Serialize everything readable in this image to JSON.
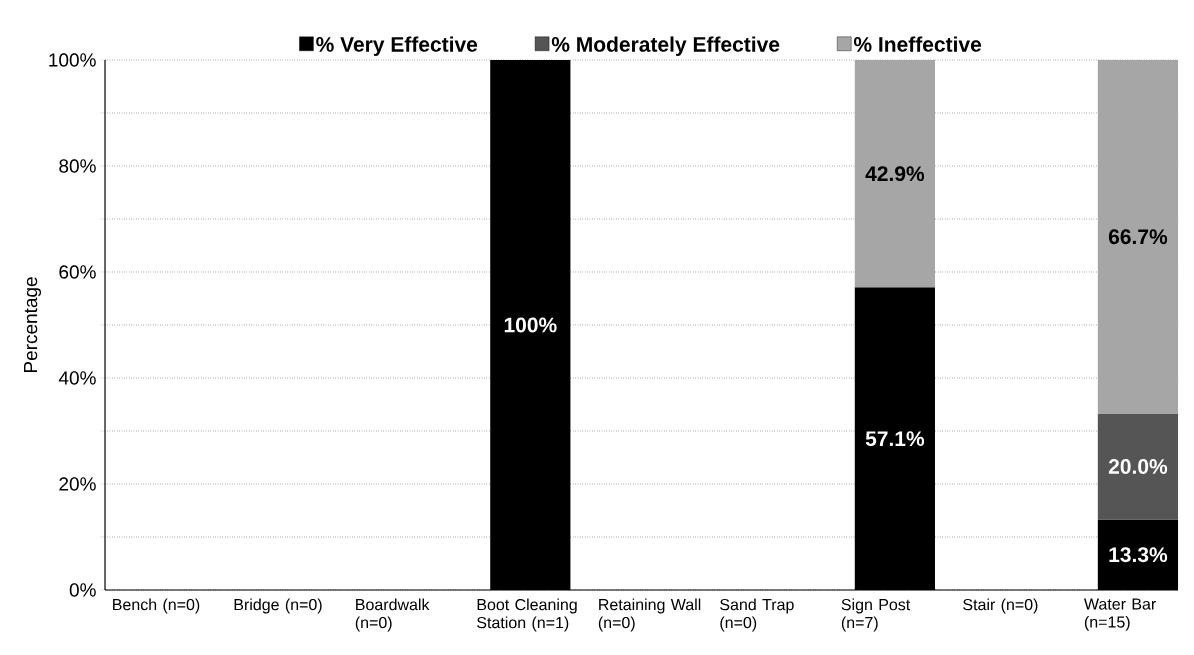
{
  "chart_data": {
    "type": "bar",
    "stacked": true,
    "ylabel": "Percentage",
    "categories": [
      "Bench (n=0)",
      "Bridge (n=0)",
      "Boardwalk (n=0)",
      "Boot Cleaning Station (n=1)",
      "Retaining Wall (n=0)",
      "Sand Trap (n=0)",
      "Sign Post (n=7)",
      "Stair (n=0)",
      "Water Bar (n=15)"
    ],
    "series": [
      {
        "name": "% Very Effective",
        "color": "#000000",
        "values": [
          null,
          null,
          null,
          100,
          null,
          null,
          57.1,
          null,
          13.3
        ],
        "value_labels": [
          null,
          null,
          null,
          "100%",
          null,
          null,
          "57.1%",
          null,
          "13.3%"
        ]
      },
      {
        "name": "% Moderately Effective",
        "color": "#555555",
        "values": [
          null,
          null,
          null,
          null,
          null,
          null,
          null,
          null,
          20.0
        ],
        "value_labels": [
          null,
          null,
          null,
          null,
          null,
          null,
          null,
          null,
          "20.0%"
        ]
      },
      {
        "name": "% Ineffective",
        "color": "#a6a6a6",
        "values": [
          null,
          null,
          null,
          null,
          null,
          null,
          42.9,
          null,
          66.7
        ],
        "value_labels": [
          null,
          null,
          null,
          null,
          null,
          null,
          "42.9%",
          null,
          "66.7%"
        ]
      }
    ],
    "ylim": [
      0,
      100
    ],
    "yticks": [
      {
        "value": 0,
        "label": "0%"
      },
      {
        "value": 10,
        "label": null
      },
      {
        "value": 20,
        "label": "20%"
      },
      {
        "value": 30,
        "label": null
      },
      {
        "value": 40,
        "label": "40%"
      },
      {
        "value": 50,
        "label": null
      },
      {
        "value": 60,
        "label": "60%"
      },
      {
        "value": 70,
        "label": null
      },
      {
        "value": 80,
        "label": "80%"
      },
      {
        "value": 90,
        "label": null
      },
      {
        "value": 100,
        "label": "100%"
      }
    ],
    "grid": "y",
    "legend": "top"
  }
}
